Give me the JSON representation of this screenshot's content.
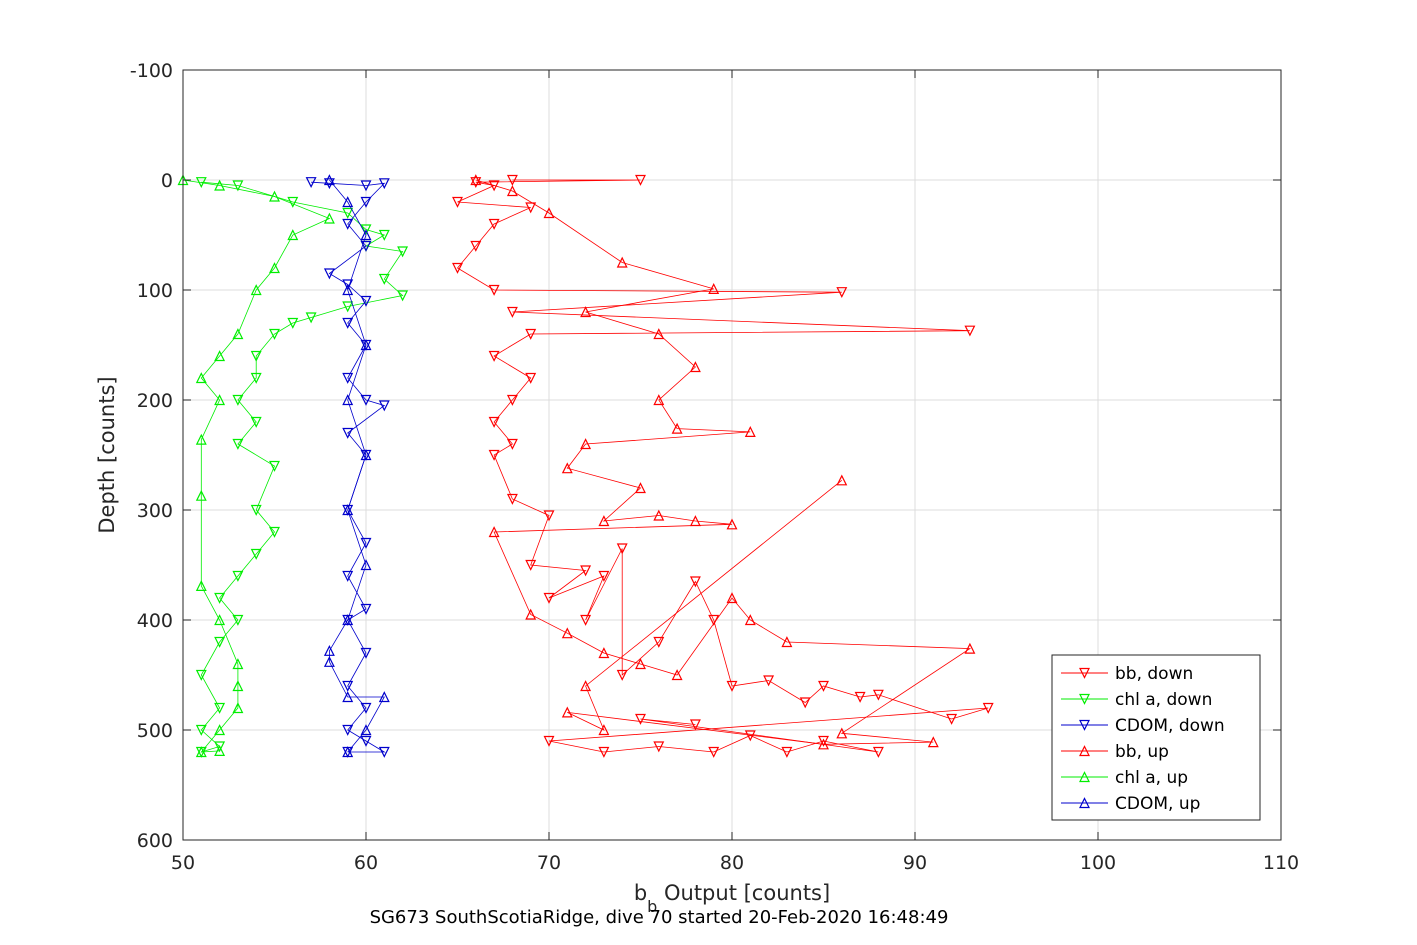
{
  "chart_data": {
    "type": "scatter",
    "title": "",
    "caption": "SG673 SouthScotiaRidge, dive 70 started 20-Feb-2020 16:48:49",
    "xlabel_main": "b",
    "xlabel_sub": "b",
    "xlabel_rest": " Output [counts]",
    "ylabel": "Depth [counts]",
    "xlim": [
      50,
      110
    ],
    "ylim": [
      -100,
      600
    ],
    "y_reversed": true,
    "grid": true,
    "legend_position": "bottom-right",
    "xticks": [
      50,
      60,
      70,
      80,
      90,
      100,
      110
    ],
    "yticks": [
      -100,
      0,
      100,
      200,
      300,
      400,
      500,
      600
    ],
    "series": [
      {
        "name": "bb, down",
        "color": "#ff0000",
        "marker": "triangle-down",
        "lines": true,
        "points": [
          [
            68,
            0
          ],
          [
            75,
            0
          ],
          [
            66,
            2
          ],
          [
            67,
            5
          ],
          [
            65,
            20
          ],
          [
            69,
            25
          ],
          [
            67,
            40
          ],
          [
            66,
            60
          ],
          [
            65,
            80
          ],
          [
            67,
            100
          ],
          [
            86,
            102
          ],
          [
            68,
            120
          ],
          [
            93,
            137
          ],
          [
            69,
            140
          ],
          [
            67,
            160
          ],
          [
            69,
            180
          ],
          [
            68,
            200
          ],
          [
            67,
            220
          ],
          [
            68,
            240
          ],
          [
            67,
            250
          ],
          [
            68,
            290
          ],
          [
            70,
            305
          ],
          [
            69,
            350
          ],
          [
            72,
            355
          ],
          [
            70,
            380
          ],
          [
            73,
            360
          ],
          [
            72,
            400
          ],
          [
            74,
            335
          ],
          [
            74,
            450
          ],
          [
            76,
            420
          ],
          [
            78,
            365
          ],
          [
            79,
            400
          ],
          [
            80,
            460
          ],
          [
            82,
            455
          ],
          [
            84,
            475
          ],
          [
            85,
            460
          ],
          [
            87,
            470
          ],
          [
            88,
            468
          ],
          [
            92,
            490
          ],
          [
            94,
            480
          ],
          [
            70,
            510
          ],
          [
            73,
            520
          ],
          [
            76,
            515
          ],
          [
            79,
            520
          ],
          [
            81,
            505
          ],
          [
            83,
            520
          ],
          [
            85,
            510
          ],
          [
            88,
            520
          ],
          [
            75,
            490
          ],
          [
            78,
            495
          ]
        ]
      },
      {
        "name": "chl a, down",
        "color": "#00ee00",
        "marker": "triangle-down",
        "lines": true,
        "points": [
          [
            51,
            2
          ],
          [
            53,
            5
          ],
          [
            56,
            20
          ],
          [
            59,
            30
          ],
          [
            60,
            45
          ],
          [
            61,
            50
          ],
          [
            60,
            60
          ],
          [
            62,
            65
          ],
          [
            61,
            90
          ],
          [
            62,
            105
          ],
          [
            59,
            115
          ],
          [
            57,
            125
          ],
          [
            56,
            130
          ],
          [
            55,
            140
          ],
          [
            54,
            160
          ],
          [
            54,
            180
          ],
          [
            53,
            200
          ],
          [
            54,
            220
          ],
          [
            53,
            240
          ],
          [
            55,
            260
          ],
          [
            54,
            300
          ],
          [
            55,
            320
          ],
          [
            54,
            340
          ],
          [
            53,
            360
          ],
          [
            52,
            380
          ],
          [
            53,
            400
          ],
          [
            52,
            420
          ],
          [
            51,
            450
          ],
          [
            52,
            480
          ],
          [
            51,
            500
          ],
          [
            52,
            515
          ],
          [
            51,
            520
          ]
        ]
      },
      {
        "name": "CDOM, down",
        "color": "#0000cc",
        "marker": "triangle-down",
        "lines": true,
        "points": [
          [
            57,
            2
          ],
          [
            58,
            3
          ],
          [
            60,
            5
          ],
          [
            61,
            3
          ],
          [
            60,
            20
          ],
          [
            59,
            40
          ],
          [
            60,
            60
          ],
          [
            58,
            85
          ],
          [
            59,
            95
          ],
          [
            60,
            110
          ],
          [
            59,
            130
          ],
          [
            60,
            150
          ],
          [
            59,
            180
          ],
          [
            60,
            200
          ],
          [
            61,
            205
          ],
          [
            59,
            230
          ],
          [
            60,
            250
          ],
          [
            59,
            300
          ],
          [
            60,
            330
          ],
          [
            59,
            360
          ],
          [
            60,
            390
          ],
          [
            59,
            400
          ],
          [
            60,
            430
          ],
          [
            59,
            460
          ],
          [
            60,
            480
          ],
          [
            59,
            500
          ],
          [
            60,
            510
          ],
          [
            61,
            520
          ],
          [
            59,
            520
          ]
        ]
      },
      {
        "name": "bb, up",
        "color": "#ff0000",
        "marker": "triangle-up",
        "lines": true,
        "points": [
          [
            66,
            0
          ],
          [
            68,
            10
          ],
          [
            70,
            30
          ],
          [
            74,
            75
          ],
          [
            79,
            99
          ],
          [
            72,
            120
          ],
          [
            76,
            140
          ],
          [
            78,
            170
          ],
          [
            76,
            200
          ],
          [
            77,
            226
          ],
          [
            81,
            229
          ],
          [
            72,
            240
          ],
          [
            71,
            262
          ],
          [
            75,
            280
          ],
          [
            73,
            310
          ],
          [
            76,
            305
          ],
          [
            78,
            310
          ],
          [
            80,
            313
          ],
          [
            67,
            320
          ],
          [
            69,
            395
          ],
          [
            71,
            412
          ],
          [
            73,
            430
          ],
          [
            75,
            440
          ],
          [
            77,
            450
          ],
          [
            80,
            380
          ],
          [
            81,
            400
          ],
          [
            83,
            420
          ],
          [
            93,
            426
          ],
          [
            86,
            503
          ],
          [
            91,
            511
          ],
          [
            85,
            513
          ],
          [
            71,
            484
          ],
          [
            73,
            500
          ],
          [
            72,
            460
          ],
          [
            86,
            273
          ]
        ]
      },
      {
        "name": "chl a, up",
        "color": "#00ee00",
        "marker": "triangle-up",
        "lines": true,
        "points": [
          [
            50,
            0
          ],
          [
            52,
            5
          ],
          [
            55,
            15
          ],
          [
            58,
            35
          ],
          [
            56,
            50
          ],
          [
            55,
            80
          ],
          [
            54,
            100
          ],
          [
            53,
            140
          ],
          [
            52,
            160
          ],
          [
            51,
            180
          ],
          [
            52,
            200
          ],
          [
            51,
            236
          ],
          [
            51,
            287
          ],
          [
            51,
            369
          ],
          [
            52,
            400
          ],
          [
            53,
            440
          ],
          [
            53,
            460
          ],
          [
            53,
            480
          ],
          [
            52,
            500
          ],
          [
            51,
            520
          ],
          [
            52,
            519
          ]
        ]
      },
      {
        "name": "CDOM, up",
        "color": "#0000cc",
        "marker": "triangle-up",
        "lines": true,
        "points": [
          [
            58,
            0
          ],
          [
            59,
            20
          ],
          [
            60,
            50
          ],
          [
            59,
            100
          ],
          [
            60,
            150
          ],
          [
            59,
            200
          ],
          [
            60,
            250
          ],
          [
            59,
            300
          ],
          [
            60,
            350
          ],
          [
            59,
            400
          ],
          [
            58,
            428
          ],
          [
            58,
            438
          ],
          [
            59,
            470
          ],
          [
            61,
            470
          ],
          [
            60,
            500
          ],
          [
            59,
            520
          ]
        ]
      }
    ]
  }
}
